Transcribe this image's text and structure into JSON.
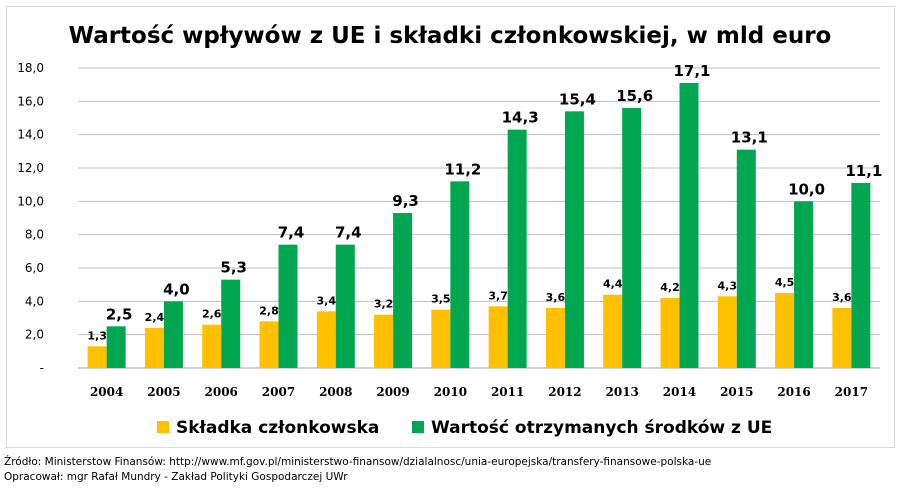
{
  "chart_data": {
    "type": "bar",
    "title": "Wartość wpływów z UE i składki członkowskiej, w mld euro",
    "categories": [
      "2004",
      "2005",
      "2006",
      "2007",
      "2008",
      "2009",
      "2010",
      "2011",
      "2012",
      "2013",
      "2014",
      "2015",
      "2016",
      "2017"
    ],
    "series": [
      {
        "name": "Składka członkowska",
        "color": "#ffc000",
        "values": [
          1.3,
          2.4,
          2.6,
          2.8,
          3.4,
          3.2,
          3.5,
          3.7,
          3.6,
          4.4,
          4.2,
          4.3,
          4.5,
          3.6
        ],
        "labels": [
          "1,3",
          "2,4",
          "2,6",
          "2,8",
          "3,4",
          "3,2",
          "3,5",
          "3,7",
          "3,6",
          "4,4",
          "4,2",
          "4,3",
          "4,5",
          "3,6"
        ]
      },
      {
        "name": "Wartość otrzymanych środków z UE",
        "color": "#00a650",
        "values": [
          2.5,
          4.0,
          5.3,
          7.4,
          7.4,
          9.3,
          11.2,
          14.3,
          15.4,
          15.6,
          17.1,
          13.1,
          10.0,
          11.1
        ],
        "labels": [
          "2,5",
          "4,0",
          "5,3",
          "7,4",
          "7,4",
          "9,3",
          "11,2",
          "14,3",
          "15,4",
          "15,6",
          "17,1",
          "13,1",
          "10,0",
          "11,1"
        ]
      }
    ],
    "ylim": [
      0,
      18
    ],
    "yticks": [
      {
        "value": 0,
        "label": "-"
      },
      {
        "value": 2,
        "label": "2,0"
      },
      {
        "value": 4,
        "label": "4,0"
      },
      {
        "value": 6,
        "label": "6,0"
      },
      {
        "value": 8,
        "label": "8,0"
      },
      {
        "value": 10,
        "label": "10,0"
      },
      {
        "value": 12,
        "label": "12,0"
      },
      {
        "value": 14,
        "label": "14,0"
      },
      {
        "value": 16,
        "label": "16,0"
      },
      {
        "value": 18,
        "label": "18,0"
      }
    ],
    "grid": true,
    "legend": "bottom"
  },
  "source": {
    "line1": "Źródło: Ministerstow Finansów: http://www.mf.gov.pl/ministerstwo-finansow/dzialalnosc/unia-europejska/transfery-finansowe-polska-ue",
    "line2": "Opracował: mgr Rafał Mundry - Zakład Polityki Gospodarczej UWr"
  }
}
